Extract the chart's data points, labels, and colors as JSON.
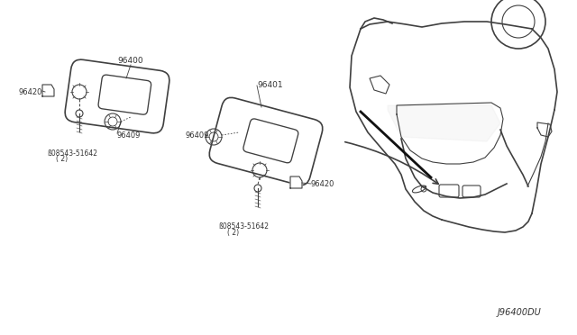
{
  "bg_color": "#ffffff",
  "line_color": "#404040",
  "label_color": "#333333",
  "diagram_code": "J96400DU",
  "parts": [
    {
      "id": "96400",
      "label": "96400"
    },
    {
      "id": "96401",
      "label": "96401"
    },
    {
      "id": "96409",
      "label": "96409"
    },
    {
      "id": "96420",
      "label": "96420"
    },
    {
      "id": "08543",
      "label": "ß08543-51642\n( 2)"
    }
  ],
  "figsize": [
    6.4,
    3.72
  ],
  "dpi": 100
}
